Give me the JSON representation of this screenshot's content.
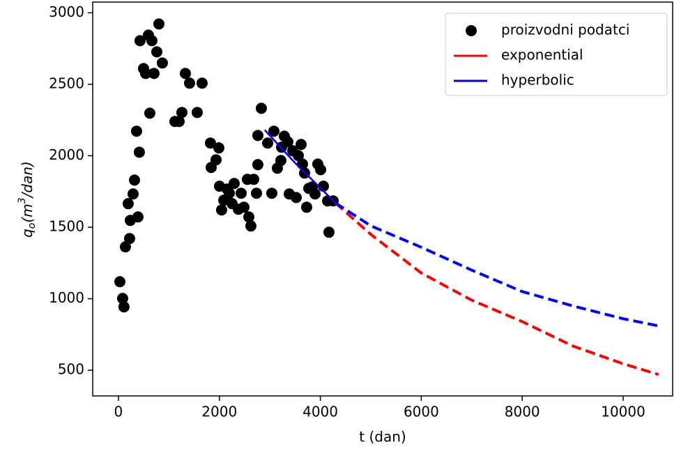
{
  "chart_data": {
    "type": "scatter",
    "xlabel": "t (dan)",
    "ylabel_parts": [
      "q",
      "o",
      "(m",
      "3",
      "/dan)"
    ],
    "xlim": [
      -510,
      10980
    ],
    "ylim": [
      320,
      3075
    ],
    "xticks": [
      0,
      2000,
      4000,
      6000,
      8000,
      10000
    ],
    "yticks": [
      500,
      1000,
      1500,
      2000,
      2500,
      3000
    ],
    "legend": "upper right",
    "series": [
      {
        "name": "proizvodni podatci",
        "color": "#000000",
        "kind": "points",
        "x": [
          28,
          83,
          110,
          138,
          193,
          221,
          235,
          290,
          318,
          359,
          387,
          414,
          428,
          497,
          539,
          594,
          621,
          663,
          704,
          760,
          801,
          870,
          1119,
          1202,
          1257,
          1326,
          1409,
          1561,
          1657,
          1823,
          1837,
          1934,
          1989,
          2003,
          2044,
          2086,
          2155,
          2196,
          2251,
          2293,
          2376,
          2431,
          2486,
          2555,
          2583,
          2624,
          2680,
          2735,
          2762,
          2762,
          2831,
          2956,
          3039,
          3080,
          3149,
          3218,
          3232,
          3287,
          3356,
          3384,
          3453,
          3522,
          3564,
          3619,
          3646,
          3688,
          3729,
          3771,
          3840,
          3895,
          3950,
          4006,
          4061,
          4144,
          4171,
          4254
        ],
        "values": [
          1119,
          1002,
          943,
          1363,
          1665,
          1421,
          1548,
          1733,
          1830,
          2172,
          1572,
          2025,
          2805,
          2610,
          2576,
          2844,
          2298,
          2805,
          2576,
          2727,
          2922,
          2649,
          2240,
          2240,
          2303,
          2576,
          2508,
          2303,
          2508,
          2089,
          1918,
          1972,
          2055,
          1787,
          1621,
          1689,
          1767,
          1738,
          1665,
          1806,
          1626,
          1738,
          1640,
          1835,
          1572,
          1509,
          1835,
          1738,
          1938,
          2142,
          2332,
          2089,
          1738,
          2172,
          1913,
          1967,
          2060,
          2137,
          2098,
          1733,
          2035,
          1708,
          2001,
          2079,
          1942,
          1879,
          1640,
          1772,
          1782,
          1733,
          1942,
          1903,
          1787,
          1684,
          1465,
          1684
        ]
      },
      {
        "name": "exponential",
        "color": "#ff0000",
        "kind": "line",
        "style": "solid",
        "x": [
          2900,
          3500,
          4300
        ],
        "values": [
          2180,
          1950,
          1670
        ]
      },
      {
        "name": "hyperbolic",
        "color": "#0000ff",
        "kind": "line",
        "style": "solid",
        "x": [
          2900,
          3500,
          4300
        ],
        "values": [
          2180,
          1950,
          1670
        ]
      },
      {
        "color": "#ff0000",
        "kind": "line",
        "style": "dashed",
        "x": [
          4300,
          5000,
          6000,
          7000,
          8000,
          9000,
          10000,
          10700
        ],
        "values": [
          1670,
          1450,
          1180,
          990,
          840,
          670,
          545,
          470
        ]
      },
      {
        "color": "#0000ff",
        "kind": "line",
        "style": "dashed",
        "x": [
          4300,
          5000,
          6000,
          7000,
          8000,
          9000,
          10000,
          10700
        ],
        "values": [
          1670,
          1510,
          1360,
          1200,
          1050,
          950,
          860,
          810
        ]
      }
    ]
  }
}
